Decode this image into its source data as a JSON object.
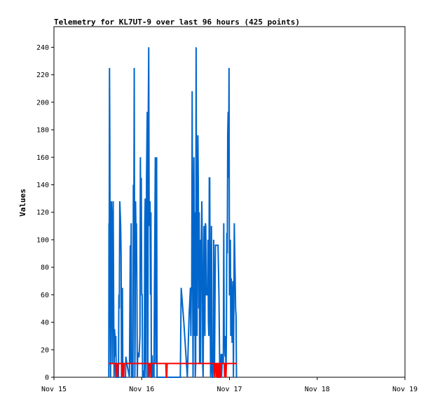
{
  "chart_data": {
    "type": "line",
    "title": "Telemetry for KL7UT-9 over last 96 hours (425 points)",
    "xlabel": "",
    "ylabel": "Values",
    "x_ticks": [
      "Nov 15",
      "Nov 16",
      "Nov 17",
      "Nov 18",
      "Nov 19"
    ],
    "x_range_days": [
      0,
      4
    ],
    "ylim": [
      0,
      255
    ],
    "y_ticks": [
      0,
      20,
      40,
      60,
      80,
      100,
      120,
      140,
      160,
      180,
      200,
      220,
      240
    ],
    "grid": false,
    "legend": "none",
    "series": [
      {
        "color": "#0066cc",
        "points": [
          [
            0.625,
            0
          ],
          [
            0.627,
            112
          ],
          [
            0.63,
            105
          ],
          [
            0.633,
            225
          ],
          [
            0.637,
            170
          ],
          [
            0.64,
            60
          ],
          [
            0.645,
            0
          ],
          [
            0.65,
            80
          ],
          [
            0.655,
            128
          ],
          [
            0.66,
            90
          ],
          [
            0.665,
            10
          ],
          [
            0.67,
            115
          ],
          [
            0.675,
            128
          ],
          [
            0.68,
            60
          ],
          [
            0.685,
            0
          ],
          [
            0.69,
            35
          ],
          [
            0.695,
            30
          ],
          [
            0.7,
            15
          ],
          [
            0.705,
            30
          ],
          [
            0.71,
            0
          ],
          [
            0.715,
            0
          ],
          [
            0.72,
            0
          ],
          [
            0.725,
            0
          ],
          [
            0.735,
            0
          ],
          [
            0.74,
            60
          ],
          [
            0.745,
            50
          ],
          [
            0.75,
            128
          ],
          [
            0.755,
            120
          ],
          [
            0.76,
            110
          ],
          [
            0.765,
            90
          ],
          [
            0.77,
            0
          ],
          [
            0.775,
            0
          ],
          [
            0.78,
            65
          ],
          [
            0.785,
            0
          ],
          [
            0.79,
            0
          ],
          [
            0.8,
            0
          ],
          [
            0.81,
            0
          ],
          [
            0.815,
            0
          ],
          [
            0.82,
            15
          ],
          [
            0.83,
            10
          ],
          [
            0.86,
            0
          ],
          [
            0.87,
            96
          ],
          [
            0.875,
            10
          ],
          [
            0.88,
            112
          ],
          [
            0.885,
            0
          ],
          [
            0.89,
            0
          ],
          [
            0.9,
            0
          ],
          [
            0.905,
            140
          ],
          [
            0.91,
            100
          ],
          [
            0.915,
            225
          ],
          [
            0.918,
            110
          ],
          [
            0.922,
            0
          ],
          [
            0.925,
            30
          ],
          [
            0.93,
            128
          ],
          [
            0.935,
            105
          ],
          [
            0.94,
            112
          ],
          [
            0.945,
            65
          ],
          [
            0.95,
            0
          ],
          [
            0.955,
            18
          ],
          [
            0.96,
            15
          ],
          [
            0.97,
            15
          ],
          [
            0.98,
            30
          ],
          [
            0.985,
            160
          ],
          [
            0.99,
            100
          ],
          [
            0.995,
            145
          ],
          [
            1.0,
            60
          ],
          [
            1.005,
            60
          ],
          [
            1.01,
            0
          ],
          [
            1.015,
            5
          ],
          [
            1.02,
            0
          ],
          [
            1.025,
            0
          ],
          [
            1.03,
            0
          ],
          [
            1.035,
            112
          ],
          [
            1.04,
            130
          ],
          [
            1.045,
            16
          ],
          [
            1.05,
            0
          ],
          [
            1.055,
            145
          ],
          [
            1.06,
            176
          ],
          [
            1.063,
            193
          ],
          [
            1.066,
            160
          ],
          [
            1.07,
            0
          ],
          [
            1.075,
            193
          ],
          [
            1.08,
            240
          ],
          [
            1.085,
            110
          ],
          [
            1.09,
            112
          ],
          [
            1.095,
            128
          ],
          [
            1.1,
            60
          ],
          [
            1.105,
            120
          ],
          [
            1.11,
            0
          ],
          [
            1.115,
            0
          ],
          [
            1.12,
            16
          ],
          [
            1.125,
            0
          ],
          [
            1.13,
            10
          ],
          [
            1.135,
            10
          ],
          [
            1.14,
            0
          ],
          [
            1.145,
            60
          ],
          [
            1.15,
            110
          ],
          [
            1.155,
            160
          ],
          [
            1.16,
            10
          ],
          [
            1.165,
            100
          ],
          [
            1.17,
            160
          ],
          [
            1.175,
            0
          ],
          [
            1.18,
            0
          ],
          [
            1.185,
            0
          ],
          [
            1.215,
            0
          ],
          [
            1.22,
            0
          ],
          [
            1.245,
            0
          ],
          [
            1.25,
            0
          ],
          [
            1.275,
            0
          ],
          [
            1.3,
            0
          ],
          [
            1.325,
            0
          ],
          [
            1.335,
            0
          ],
          [
            1.34,
            0
          ],
          [
            1.345,
            0
          ],
          [
            1.36,
            0
          ],
          [
            1.365,
            0
          ],
          [
            1.38,
            0
          ],
          [
            1.385,
            0
          ],
          [
            1.395,
            0
          ],
          [
            1.42,
            0
          ],
          [
            1.44,
            0
          ],
          [
            1.45,
            65
          ],
          [
            1.48,
            40
          ],
          [
            1.52,
            0
          ],
          [
            1.54,
            45
          ],
          [
            1.555,
            65
          ],
          [
            1.56,
            30
          ],
          [
            1.565,
            65
          ],
          [
            1.57,
            65
          ],
          [
            1.575,
            208
          ],
          [
            1.58,
            80
          ],
          [
            1.585,
            0
          ],
          [
            1.59,
            110
          ],
          [
            1.595,
            160
          ],
          [
            1.6,
            30
          ],
          [
            1.605,
            120
          ],
          [
            1.61,
            0
          ],
          [
            1.615,
            10
          ],
          [
            1.62,
            240
          ],
          [
            1.625,
            120
          ],
          [
            1.63,
            30
          ],
          [
            1.635,
            110
          ],
          [
            1.64,
            176
          ],
          [
            1.645,
            140
          ],
          [
            1.65,
            50
          ],
          [
            1.655,
            120
          ],
          [
            1.66,
            10
          ],
          [
            1.665,
            100
          ],
          [
            1.67,
            10
          ],
          [
            1.68,
            100
          ],
          [
            1.685,
            128
          ],
          [
            1.69,
            100
          ],
          [
            1.695,
            10
          ],
          [
            1.7,
            0
          ],
          [
            1.705,
            60
          ],
          [
            1.71,
            110
          ],
          [
            1.72,
            30
          ],
          [
            1.725,
            112
          ],
          [
            1.73,
            110
          ],
          [
            1.735,
            60
          ],
          [
            1.74,
            60
          ],
          [
            1.75,
            60
          ],
          [
            1.755,
            100
          ],
          [
            1.76,
            40
          ],
          [
            1.765,
            30
          ],
          [
            1.77,
            145
          ],
          [
            1.775,
            145
          ],
          [
            1.78,
            60
          ],
          [
            1.785,
            0
          ],
          [
            1.79,
            10
          ],
          [
            1.795,
            110
          ],
          [
            1.8,
            10
          ],
          [
            1.805,
            0
          ],
          [
            1.81,
            0
          ],
          [
            1.815,
            10
          ],
          [
            1.82,
            100
          ],
          [
            1.825,
            60
          ],
          [
            1.83,
            10
          ],
          [
            1.84,
            96
          ],
          [
            1.85,
            96
          ],
          [
            1.86,
            96
          ],
          [
            1.87,
            96
          ],
          [
            1.88,
            60
          ],
          [
            1.89,
            0
          ],
          [
            1.9,
            0
          ],
          [
            1.905,
            17
          ],
          [
            1.91,
            0
          ],
          [
            1.92,
            17
          ],
          [
            1.93,
            10
          ],
          [
            1.935,
            112
          ],
          [
            1.94,
            30
          ],
          [
            1.945,
            25
          ],
          [
            1.95,
            15
          ],
          [
            1.955,
            30
          ],
          [
            1.96,
            0
          ],
          [
            1.965,
            30
          ],
          [
            1.97,
            105
          ],
          [
            1.975,
            90
          ],
          [
            1.98,
            176
          ],
          [
            1.985,
            193
          ],
          [
            1.99,
            145
          ],
          [
            1.995,
            225
          ],
          [
            2.0,
            60
          ],
          [
            2.005,
            60
          ],
          [
            2.01,
            100
          ],
          [
            2.015,
            30
          ],
          [
            2.02,
            72
          ],
          [
            2.025,
            60
          ],
          [
            2.03,
            25
          ],
          [
            2.035,
            50
          ],
          [
            2.04,
            70
          ],
          [
            2.045,
            0
          ],
          [
            2.05,
            50
          ],
          [
            2.055,
            112
          ],
          [
            2.06,
            90
          ],
          [
            2.065,
            72
          ],
          [
            2.07,
            50
          ],
          [
            2.075,
            45
          ],
          [
            2.08,
            0
          ],
          [
            2.085,
            0
          ]
        ]
      },
      {
        "color": "#ff0000",
        "points": [
          [
            0.625,
            10
          ],
          [
            0.7,
            10
          ],
          [
            0.705,
            0
          ],
          [
            0.71,
            10
          ],
          [
            0.72,
            10
          ],
          [
            0.725,
            0
          ],
          [
            0.73,
            10
          ],
          [
            0.77,
            10
          ],
          [
            0.775,
            0
          ],
          [
            0.78,
            10
          ],
          [
            0.79,
            10
          ],
          [
            0.795,
            0
          ],
          [
            0.8,
            10
          ],
          [
            1.08,
            10
          ],
          [
            1.085,
            0
          ],
          [
            1.09,
            10
          ],
          [
            1.1,
            10
          ],
          [
            1.105,
            0
          ],
          [
            1.11,
            10
          ],
          [
            1.275,
            10
          ],
          [
            1.28,
            0
          ],
          [
            1.285,
            0
          ],
          [
            1.29,
            10
          ],
          [
            1.825,
            10
          ],
          [
            1.83,
            0
          ],
          [
            1.835,
            10
          ],
          [
            1.845,
            10
          ],
          [
            1.85,
            0
          ],
          [
            1.855,
            10
          ],
          [
            1.86,
            10
          ],
          [
            1.865,
            0
          ],
          [
            1.87,
            0
          ],
          [
            1.875,
            10
          ],
          [
            1.88,
            10
          ],
          [
            1.885,
            0
          ],
          [
            1.895,
            0
          ],
          [
            1.9,
            10
          ],
          [
            1.94,
            10
          ],
          [
            1.945,
            0
          ],
          [
            1.95,
            10
          ],
          [
            1.955,
            10
          ],
          [
            1.96,
            0
          ],
          [
            1.965,
            10
          ],
          [
            2.085,
            10
          ]
        ]
      }
    ]
  }
}
